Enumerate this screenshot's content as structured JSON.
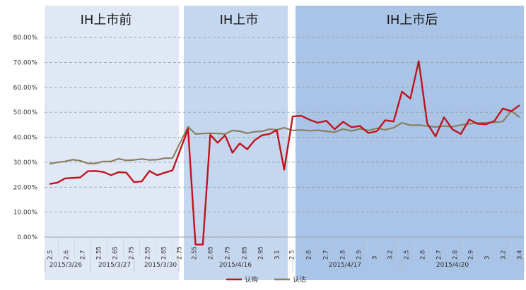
{
  "chart_data": {
    "type": "line",
    "y_ticks": [
      "80.00%",
      "70.00%",
      "60.00%",
      "50.00%",
      "40.00%",
      "30.00%",
      "20.00%",
      "10.00%",
      "0.00%"
    ],
    "ylim": [
      0,
      80
    ],
    "grid": true,
    "legend_position": "bottom",
    "period_titles": [
      "IH上市前",
      "IH上市",
      "IH上市后"
    ],
    "period_colors": [
      "#dfe8f4",
      "#c5d7ee",
      "#a9c4e6"
    ],
    "x_tick_labels": [
      "2.5",
      "2.6",
      "2.7",
      "2.55",
      "2.65",
      "2.75",
      "2.55",
      "2.65",
      "2.75",
      "2.55",
      "2.65",
      "2.75",
      "2.85",
      "2.95",
      "3.1",
      "2.5",
      "2.6",
      "2.7",
      "2.8",
      "2.9",
      "3",
      "3.2",
      "2.5",
      "2.6",
      "2.7",
      "2.8",
      "2.9",
      "3",
      "3.2",
      "3.4"
    ],
    "date_groups": [
      {
        "label": "2015/3/26"
      },
      {
        "label": "2015/3/27"
      },
      {
        "label": "2015/3/30"
      },
      {
        "label": "2015/4/16"
      },
      {
        "label": "2015/4/17"
      },
      {
        "label": "2015/4/20"
      }
    ],
    "series": [
      {
        "name": "认购",
        "color": "#c0141e",
        "values": [
          21.3,
          21.8,
          23.5,
          23.7,
          23.9,
          26.4,
          26.5,
          26.1,
          24.8,
          26.0,
          25.8,
          22.0,
          22.3,
          26.5,
          24.8,
          25.8,
          26.7,
          43.3,
          -3,
          -3,
          41.0,
          37.8,
          40.8,
          33.8,
          37.5,
          35.2,
          38.8,
          40.8,
          41.3,
          42.8,
          27.0,
          48.3,
          48.6,
          47.0,
          45.8,
          46.6,
          43.2,
          46.2,
          44.0,
          44.5,
          41.7,
          42.4,
          46.8,
          46.3,
          58.3,
          55.5,
          70.5,
          45.6,
          40.3,
          48.0,
          43.2,
          41.3,
          47.1,
          45.4,
          45.2,
          46.5,
          51.5,
          50.4,
          52.8
        ]
      },
      {
        "name": "认沽",
        "color": "#8a7f60",
        "values": [
          29.4,
          29.9,
          30.3,
          31.0,
          30.6,
          29.5,
          29.5,
          30.3,
          30.3,
          31.4,
          30.7,
          30.9,
          31.3,
          30.9,
          31.0,
          31.6,
          31.6,
          44.2,
          41.3,
          41.5,
          41.6,
          41.5,
          41.3,
          42.7,
          42.4,
          41.6,
          42.2,
          42.4,
          43.2,
          43.0,
          43.8,
          42.7,
          42.9,
          42.6,
          42.8,
          42.4,
          42.0,
          43.3,
          42.5,
          43.4,
          42.7,
          43.6,
          43.0,
          43.8,
          45.8,
          44.8,
          44.9,
          44.5,
          44.1,
          44.5,
          44.2,
          44.9,
          45.4,
          45.7,
          45.8,
          46.0,
          46.3,
          50.6,
          48.0
        ]
      }
    ]
  }
}
